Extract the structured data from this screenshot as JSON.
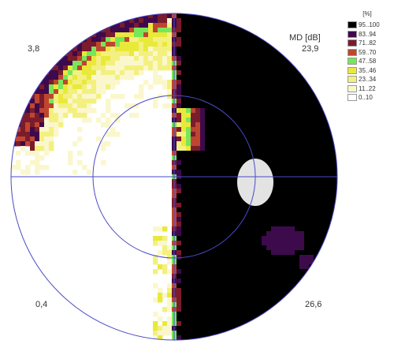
{
  "chart_data": {
    "type": "heatmap",
    "title": "",
    "legend": {
      "title": "[%]",
      "placement": "right",
      "bins": [
        {
          "label": "95..100",
          "color": "#000000"
        },
        {
          "label": "83..94",
          "color": "#3d0a4c"
        },
        {
          "label": "71..82",
          "color": "#7a1c2c"
        },
        {
          "label": "59..70",
          "color": "#c0452f"
        },
        {
          "label": "47..58",
          "color": "#77e65b"
        },
        {
          "label": "35..46",
          "color": "#e9e93a"
        },
        {
          "label": "23..34",
          "color": "#f3f080"
        },
        {
          "label": "11..22",
          "color": "#fbf7cd"
        },
        {
          "label": "0..10",
          "color": "#ffffff"
        }
      ]
    },
    "md_unit": "MD [dB]",
    "quadrant_values": {
      "upper_left": "3,8",
      "upper_right": "23,9",
      "lower_left": "0,4",
      "lower_right": "26,6"
    },
    "blind_spot": true,
    "regions": {
      "right_hemifield": "95..100",
      "left_hemifield": "0..10",
      "superior_left_rim": "23..34 to 83..94",
      "midline_border": "47..94",
      "inferior_right_patches": "83..94"
    }
  }
}
